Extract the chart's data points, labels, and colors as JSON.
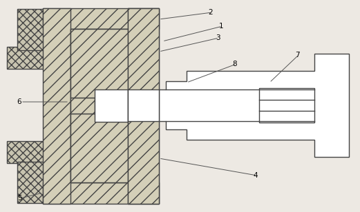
{
  "bg_color": "#ede9e3",
  "line_color": "#444444",
  "lw": 1.0,
  "fig_w": 5.21,
  "fig_h": 3.08,
  "dpi": 100
}
